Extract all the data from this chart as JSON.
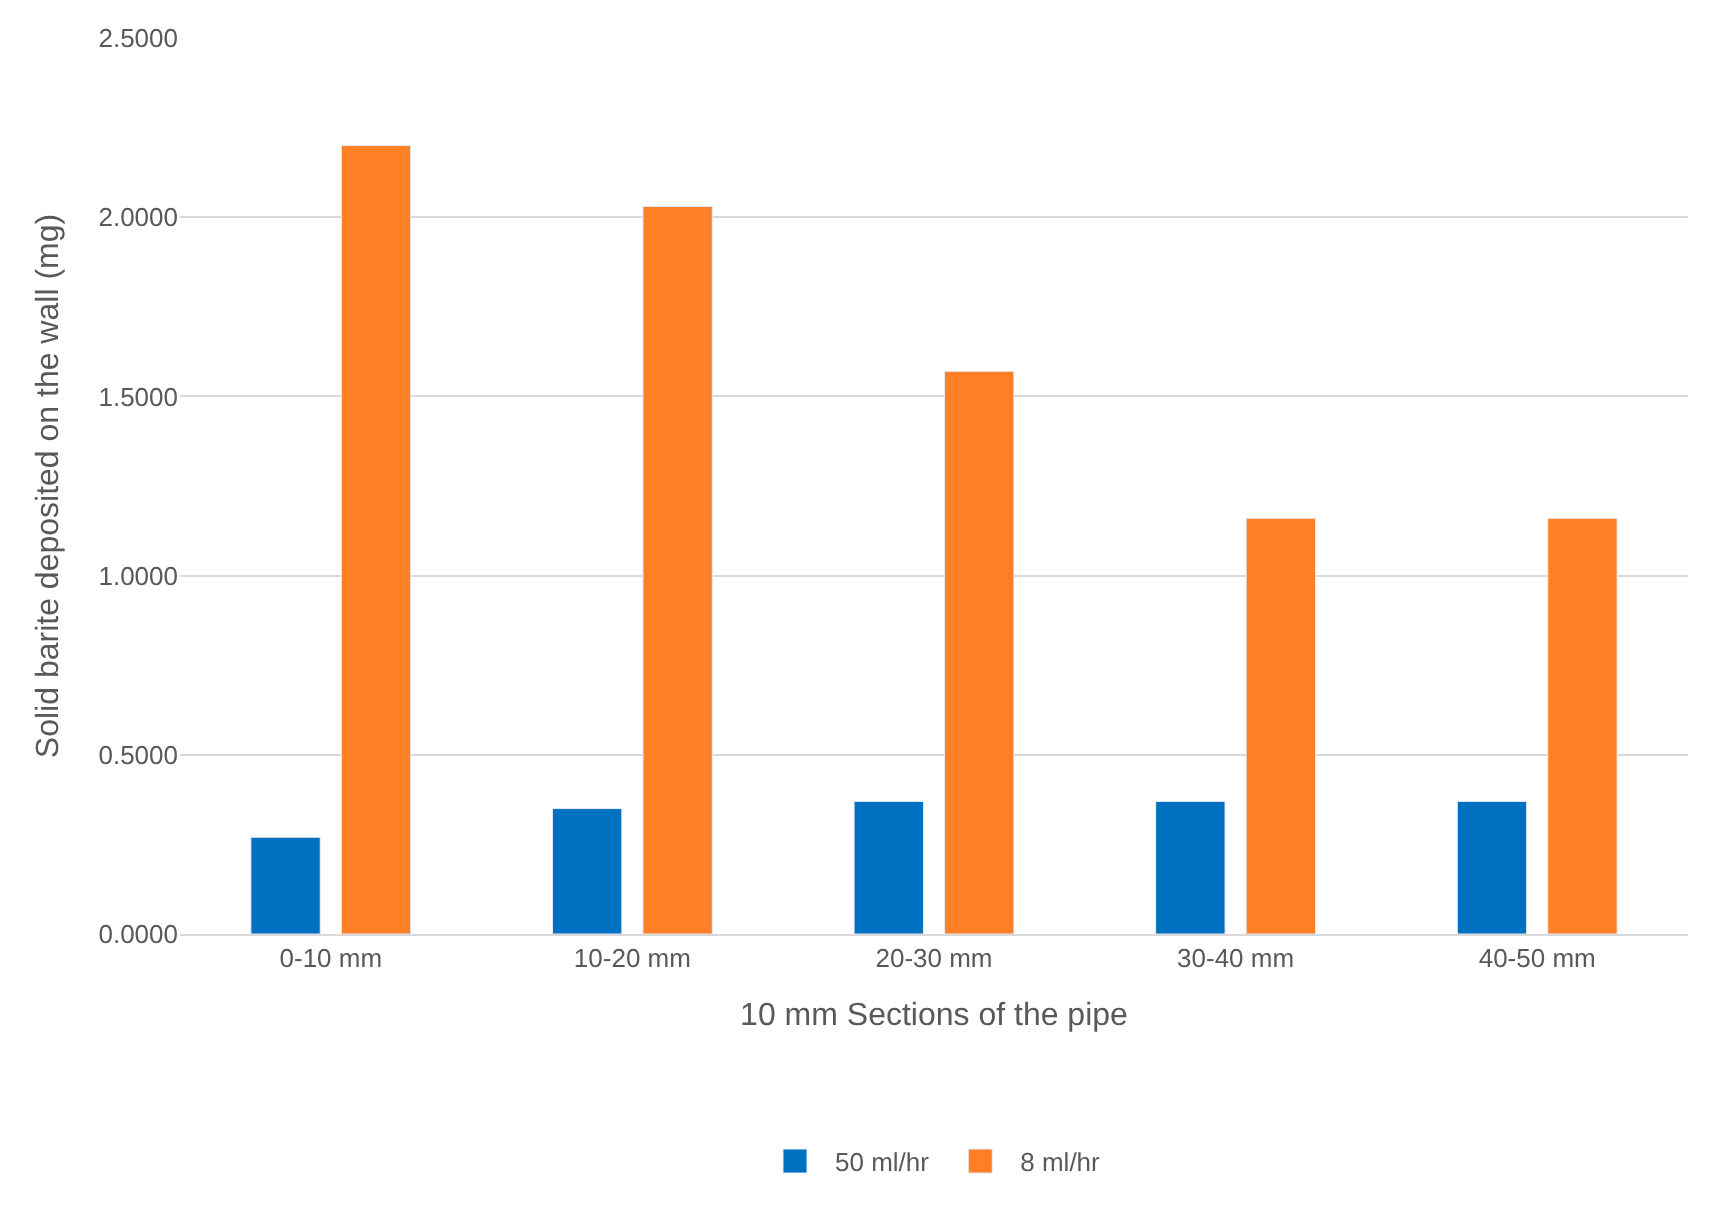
{
  "chart_data": {
    "type": "bar",
    "xlabel": "10 mm Sections of the pipe",
    "ylabel": "Solid barite deposited on the wall (mg)",
    "categories": [
      "0-10 mm",
      "10-20 mm",
      "20-30 mm",
      "30-40 mm",
      "40-50 mm"
    ],
    "series": [
      {
        "name": "50 ml/hr",
        "color": "#0070c0",
        "values": [
          0.27,
          0.35,
          0.37,
          0.37,
          0.37
        ]
      },
      {
        "name": "8 ml/hr",
        "color": "#ff7f27",
        "values": [
          2.2,
          2.03,
          1.57,
          1.16,
          1.16
        ]
      }
    ],
    "ylim": [
      0,
      2.5
    ],
    "yticks": [
      {
        "value": 0,
        "label": "0.0000"
      },
      {
        "value": 0.5,
        "label": "0.5000"
      },
      {
        "value": 1,
        "label": "1.0000"
      },
      {
        "value": 1.5,
        "label": "1.5000"
      },
      {
        "value": 2,
        "label": "2.0000"
      },
      {
        "value": 2.5,
        "label": "2.5000"
      }
    ],
    "grid": "y",
    "legend": "bottom"
  }
}
